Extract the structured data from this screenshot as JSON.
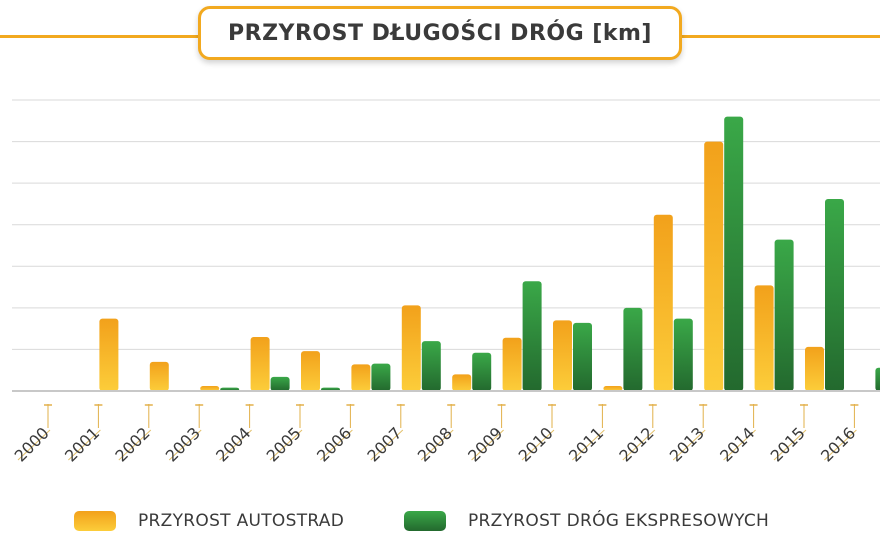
{
  "chart_data": {
    "type": "bar",
    "title": "PRZYROST DŁUGOŚCI DRÓG [km]",
    "categories": [
      "2000",
      "2001",
      "2002",
      "2003",
      "2004",
      "2005",
      "2006",
      "2007",
      "2008",
      "2009",
      "2010",
      "2011",
      "2012",
      "2013",
      "2014",
      "2015",
      "2016"
    ],
    "series": [
      {
        "name": "PRZYROST AUTOSTRAD",
        "color": "#f5a91a",
        "values": [
          0,
          87,
          35,
          6,
          65,
          48,
          32,
          103,
          20,
          64,
          85,
          6,
          212,
          300,
          127,
          53,
          0
        ]
      },
      {
        "name": "PRZYROST DRÓG EKSPRESOWYCH",
        "color": "#2e9a3e",
        "values": [
          0,
          0,
          0,
          4,
          17,
          4,
          33,
          60,
          46,
          132,
          82,
          100,
          87,
          330,
          182,
          231,
          28
        ]
      }
    ],
    "ylim": [
      0,
      350
    ],
    "grid": true,
    "legend": "bottom"
  }
}
